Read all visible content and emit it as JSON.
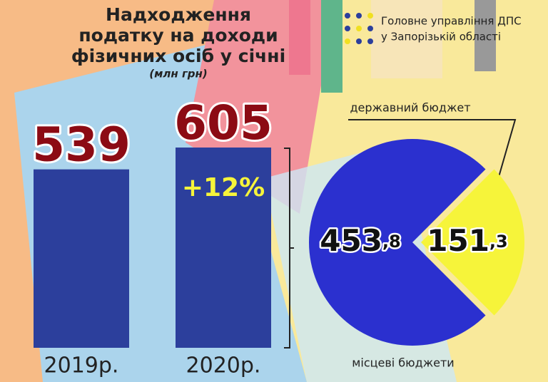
{
  "title_lines": [
    "Надходження",
    "податку на доходи",
    "фізичних осіб у січні"
  ],
  "unit": "(млн грн)",
  "org_lines": [
    "Головне управління ДПС",
    "у Запорізькій області"
  ],
  "chart_data": [
    {
      "type": "bar",
      "categories": [
        "2019р.",
        "2020р."
      ],
      "values": [
        539,
        605
      ],
      "color": "#2c3f9c",
      "value_color": "#8c0b14",
      "annotation": "+12%"
    },
    {
      "type": "pie",
      "labels": [
        "місцеві бюджети",
        "державний бюджет"
      ],
      "values": [
        453.8,
        151.3
      ],
      "value_labels": [
        "453,8",
        "151,3"
      ],
      "colors": [
        "#2b30cf",
        "#f6f43a"
      ]
    }
  ]
}
